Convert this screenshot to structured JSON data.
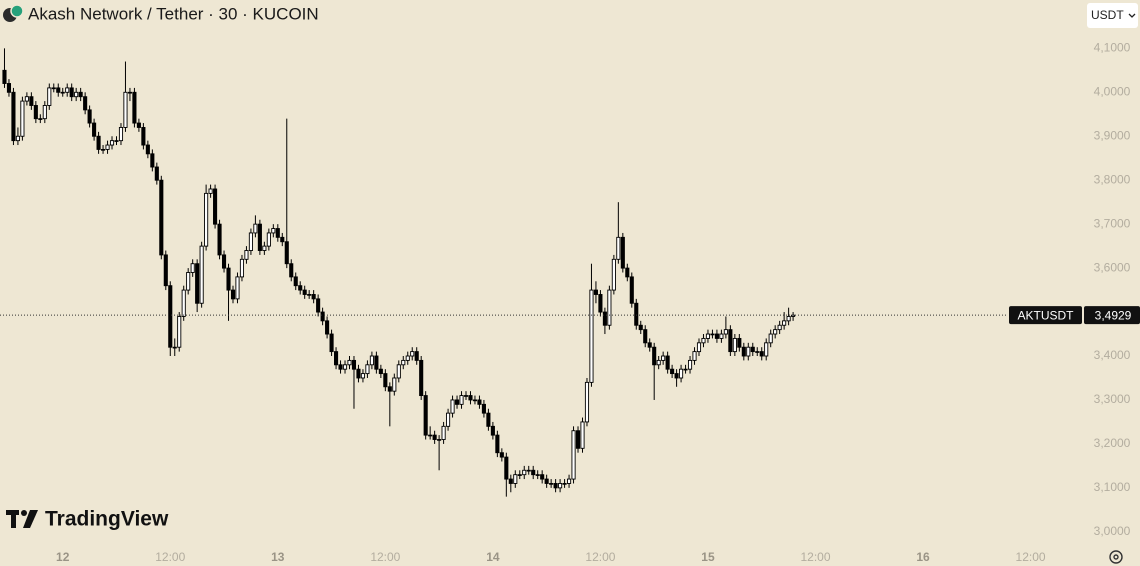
{
  "chart_data": {
    "type": "candlestick",
    "title": "Akash Network / Tether · 30 · KUCOIN",
    "currency": "USDT",
    "watermark": "TradingView",
    "symbol": "AKTUSDT",
    "last_price": {
      "value": 3.4929,
      "label": "3,4929"
    },
    "up_color": "#ffffff",
    "down_color": "#000000",
    "wick_color": "#000000",
    "xlim": [
      -1,
      240.7
    ],
    "ylim": [
      2.97,
      4.21
    ],
    "xticks": [
      {
        "value": 13,
        "label": "12"
      },
      {
        "value": 37,
        "label": "12:00"
      },
      {
        "value": 61,
        "label": "13"
      },
      {
        "value": 85,
        "label": "12:00"
      },
      {
        "value": 109,
        "label": "14"
      },
      {
        "value": 133,
        "label": "12:00"
      },
      {
        "value": 157,
        "label": "15"
      },
      {
        "value": 181,
        "label": "12:00"
      },
      {
        "value": 205,
        "label": "16"
      },
      {
        "value": 229,
        "label": "12:00"
      }
    ],
    "yticks": [
      {
        "value": 3.0,
        "label": "3,0000"
      },
      {
        "value": 3.1,
        "label": "3,1000"
      },
      {
        "value": 3.2,
        "label": "3,2000"
      },
      {
        "value": 3.3,
        "label": "3,3000"
      },
      {
        "value": 3.4,
        "label": "3,4000"
      },
      {
        "value": 3.5,
        "label": "3,5000"
      },
      {
        "value": 3.6,
        "label": "3,6000"
      },
      {
        "value": 3.7,
        "label": "3,7000"
      },
      {
        "value": 3.8,
        "label": "3,8000"
      },
      {
        "value": 3.9,
        "label": "3,9000"
      },
      {
        "value": 4.0,
        "label": "4,0000"
      },
      {
        "value": 4.1,
        "label": "4,1000"
      }
    ],
    "open": [
      4.05,
      4.02,
      4.0,
      3.89,
      3.9,
      3.98,
      3.99,
      3.97,
      3.94,
      3.94,
      3.97,
      4.01,
      4.01,
      4.0,
      4.0,
      4.01,
      3.99,
      4.0,
      3.99,
      3.96,
      3.93,
      3.9,
      3.87,
      3.87,
      3.88,
      3.89,
      3.89,
      3.92,
      4.0,
      4.0,
      3.93,
      3.92,
      3.88,
      3.86,
      3.83,
      3.8,
      3.63,
      3.56,
      3.42,
      3.42,
      3.49,
      3.55,
      3.59,
      3.61,
      3.52,
      3.65,
      3.77,
      3.78,
      3.7,
      3.63,
      3.6,
      3.55,
      3.53,
      3.58,
      3.62,
      3.64,
      3.68,
      3.7,
      3.64,
      3.65,
      3.68,
      3.69,
      3.67,
      3.66,
      3.61,
      3.58,
      3.56,
      3.55,
      3.54,
      3.54,
      3.53,
      3.5,
      3.48,
      3.45,
      3.41,
      3.38,
      3.37,
      3.38,
      3.39,
      3.37,
      3.35,
      3.36,
      3.38,
      3.4,
      3.37,
      3.36,
      3.33,
      3.32,
      3.35,
      3.38,
      3.39,
      3.4,
      3.41,
      3.39,
      3.31,
      3.22,
      3.22,
      3.21,
      3.21,
      3.24,
      3.27,
      3.3,
      3.29,
      3.31,
      3.31,
      3.3,
      3.3,
      3.29,
      3.27,
      3.24,
      3.22,
      3.18,
      3.17,
      3.12,
      3.11,
      3.13,
      3.13,
      3.14,
      3.14,
      3.13,
      3.13,
      3.12,
      3.11,
      3.11,
      3.1,
      3.11,
      3.11,
      3.12,
      3.23,
      3.19,
      3.25,
      3.34,
      3.55,
      3.54,
      3.5,
      3.47,
      3.55,
      3.62,
      3.67,
      3.6,
      3.58,
      3.52,
      3.47,
      3.46,
      3.43,
      3.42,
      3.38,
      3.39,
      3.4,
      3.37,
      3.36,
      3.35,
      3.37,
      3.37,
      3.39,
      3.41,
      3.43,
      3.44,
      3.45,
      3.45,
      3.44,
      3.45,
      3.46,
      3.41,
      3.44,
      3.42,
      3.4,
      3.42,
      3.41,
      3.41,
      3.4,
      3.43,
      3.45,
      3.46,
      3.47,
      3.48,
      3.49
    ],
    "high": [
      4.1,
      4.03,
      4.01,
      3.92,
      3.99,
      4.0,
      4.0,
      3.98,
      3.95,
      3.98,
      4.02,
      4.02,
      4.02,
      4.01,
      4.02,
      4.02,
      4.01,
      4.01,
      4.0,
      3.97,
      3.94,
      3.91,
      3.88,
      3.89,
      3.9,
      3.9,
      3.93,
      4.07,
      4.01,
      4.01,
      3.94,
      3.93,
      3.89,
      3.87,
      3.84,
      3.81,
      3.64,
      3.57,
      3.44,
      3.5,
      3.56,
      3.6,
      3.62,
      3.62,
      3.66,
      3.79,
      3.79,
      3.79,
      3.71,
      3.64,
      3.61,
      3.56,
      3.59,
      3.63,
      3.65,
      3.69,
      3.72,
      3.71,
      3.66,
      3.69,
      3.7,
      3.7,
      3.68,
      3.94,
      3.62,
      3.59,
      3.57,
      3.56,
      3.55,
      3.55,
      3.54,
      3.51,
      3.49,
      3.46,
      3.42,
      3.39,
      3.39,
      3.4,
      3.4,
      3.38,
      3.37,
      3.39,
      3.41,
      3.41,
      3.38,
      3.37,
      3.34,
      3.36,
      3.39,
      3.4,
      3.41,
      3.42,
      3.42,
      3.4,
      3.32,
      3.24,
      3.23,
      3.22,
      3.25,
      3.28,
      3.31,
      3.31,
      3.32,
      3.32,
      3.32,
      3.31,
      3.31,
      3.3,
      3.28,
      3.25,
      3.23,
      3.19,
      3.18,
      3.13,
      3.14,
      3.14,
      3.15,
      3.15,
      3.15,
      3.14,
      3.14,
      3.13,
      3.12,
      3.12,
      3.12,
      3.12,
      3.13,
      3.24,
      3.24,
      3.26,
      3.35,
      3.61,
      3.57,
      3.55,
      3.51,
      3.56,
      3.63,
      3.75,
      3.68,
      3.61,
      3.59,
      3.53,
      3.48,
      3.47,
      3.44,
      3.43,
      3.4,
      3.41,
      3.41,
      3.38,
      3.37,
      3.38,
      3.38,
      3.4,
      3.42,
      3.44,
      3.45,
      3.46,
      3.46,
      3.46,
      3.46,
      3.49,
      3.47,
      3.45,
      3.45,
      3.43,
      3.43,
      3.43,
      3.42,
      3.42,
      3.44,
      3.46,
      3.47,
      3.48,
      3.5,
      3.51,
      3.5
    ],
    "low": [
      4.01,
      3.99,
      3.88,
      3.88,
      3.89,
      3.97,
      3.96,
      3.93,
      3.93,
      3.93,
      3.96,
      4.0,
      3.99,
      3.99,
      3.99,
      3.98,
      3.98,
      3.98,
      3.95,
      3.92,
      3.89,
      3.86,
      3.86,
      3.86,
      3.87,
      3.88,
      3.88,
      3.91,
      3.98,
      3.92,
      3.91,
      3.87,
      3.85,
      3.82,
      3.79,
      3.62,
      3.55,
      3.4,
      3.4,
      3.41,
      3.48,
      3.54,
      3.58,
      3.5,
      3.51,
      3.64,
      3.76,
      3.69,
      3.62,
      3.59,
      3.48,
      3.52,
      3.52,
      3.57,
      3.61,
      3.63,
      3.67,
      3.63,
      3.63,
      3.64,
      3.67,
      3.66,
      3.65,
      3.6,
      3.57,
      3.55,
      3.54,
      3.53,
      3.53,
      3.52,
      3.49,
      3.47,
      3.44,
      3.4,
      3.37,
      3.36,
      3.36,
      3.37,
      3.28,
      3.34,
      3.34,
      3.35,
      3.37,
      3.36,
      3.35,
      3.32,
      3.24,
      3.31,
      3.34,
      3.37,
      3.38,
      3.39,
      3.38,
      3.3,
      3.21,
      3.21,
      3.2,
      3.14,
      3.2,
      3.23,
      3.26,
      3.28,
      3.28,
      3.3,
      3.29,
      3.29,
      3.28,
      3.26,
      3.23,
      3.21,
      3.17,
      3.16,
      3.08,
      3.09,
      3.1,
      3.12,
      3.12,
      3.13,
      3.12,
      3.12,
      3.11,
      3.1,
      3.1,
      3.09,
      3.09,
      3.1,
      3.1,
      3.11,
      3.18,
      3.18,
      3.24,
      3.33,
      3.52,
      3.49,
      3.45,
      3.46,
      3.54,
      3.61,
      3.59,
      3.57,
      3.51,
      3.46,
      3.45,
      3.42,
      3.41,
      3.3,
      3.37,
      3.38,
      3.36,
      3.35,
      3.33,
      3.34,
      3.36,
      3.36,
      3.38,
      3.4,
      3.42,
      3.43,
      3.44,
      3.43,
      3.43,
      3.44,
      3.4,
      3.4,
      3.41,
      3.39,
      3.39,
      3.4,
      3.4,
      3.39,
      3.39,
      3.42,
      3.44,
      3.45,
      3.46,
      3.47,
      3.48
    ],
    "close": [
      4.02,
      4.0,
      3.89,
      3.9,
      3.98,
      3.99,
      3.97,
      3.94,
      3.94,
      3.97,
      4.01,
      4.01,
      4.0,
      4.0,
      4.01,
      3.99,
      4.0,
      3.99,
      3.96,
      3.93,
      3.9,
      3.87,
      3.87,
      3.88,
      3.89,
      3.89,
      3.92,
      4.0,
      4.0,
      3.93,
      3.92,
      3.88,
      3.86,
      3.83,
      3.8,
      3.63,
      3.56,
      3.42,
      3.42,
      3.49,
      3.55,
      3.59,
      3.61,
      3.52,
      3.65,
      3.77,
      3.78,
      3.7,
      3.63,
      3.6,
      3.55,
      3.53,
      3.58,
      3.62,
      3.64,
      3.68,
      3.7,
      3.64,
      3.65,
      3.68,
      3.69,
      3.67,
      3.66,
      3.61,
      3.58,
      3.56,
      3.55,
      3.54,
      3.54,
      3.53,
      3.5,
      3.48,
      3.45,
      3.41,
      3.38,
      3.37,
      3.38,
      3.39,
      3.37,
      3.35,
      3.36,
      3.38,
      3.4,
      3.37,
      3.36,
      3.33,
      3.32,
      3.35,
      3.38,
      3.39,
      3.4,
      3.41,
      3.39,
      3.31,
      3.22,
      3.22,
      3.21,
      3.21,
      3.24,
      3.27,
      3.3,
      3.29,
      3.31,
      3.31,
      3.3,
      3.3,
      3.29,
      3.27,
      3.24,
      3.22,
      3.18,
      3.17,
      3.12,
      3.11,
      3.13,
      3.13,
      3.14,
      3.14,
      3.13,
      3.13,
      3.12,
      3.11,
      3.11,
      3.1,
      3.11,
      3.11,
      3.12,
      3.23,
      3.19,
      3.25,
      3.34,
      3.55,
      3.54,
      3.5,
      3.47,
      3.55,
      3.62,
      3.67,
      3.6,
      3.58,
      3.52,
      3.47,
      3.46,
      3.43,
      3.42,
      3.38,
      3.39,
      3.4,
      3.37,
      3.36,
      3.35,
      3.37,
      3.37,
      3.39,
      3.41,
      3.43,
      3.44,
      3.45,
      3.45,
      3.44,
      3.45,
      3.46,
      3.41,
      3.44,
      3.42,
      3.4,
      3.42,
      3.41,
      3.41,
      3.4,
      3.43,
      3.45,
      3.46,
      3.47,
      3.48,
      3.49,
      3.4929
    ]
  }
}
